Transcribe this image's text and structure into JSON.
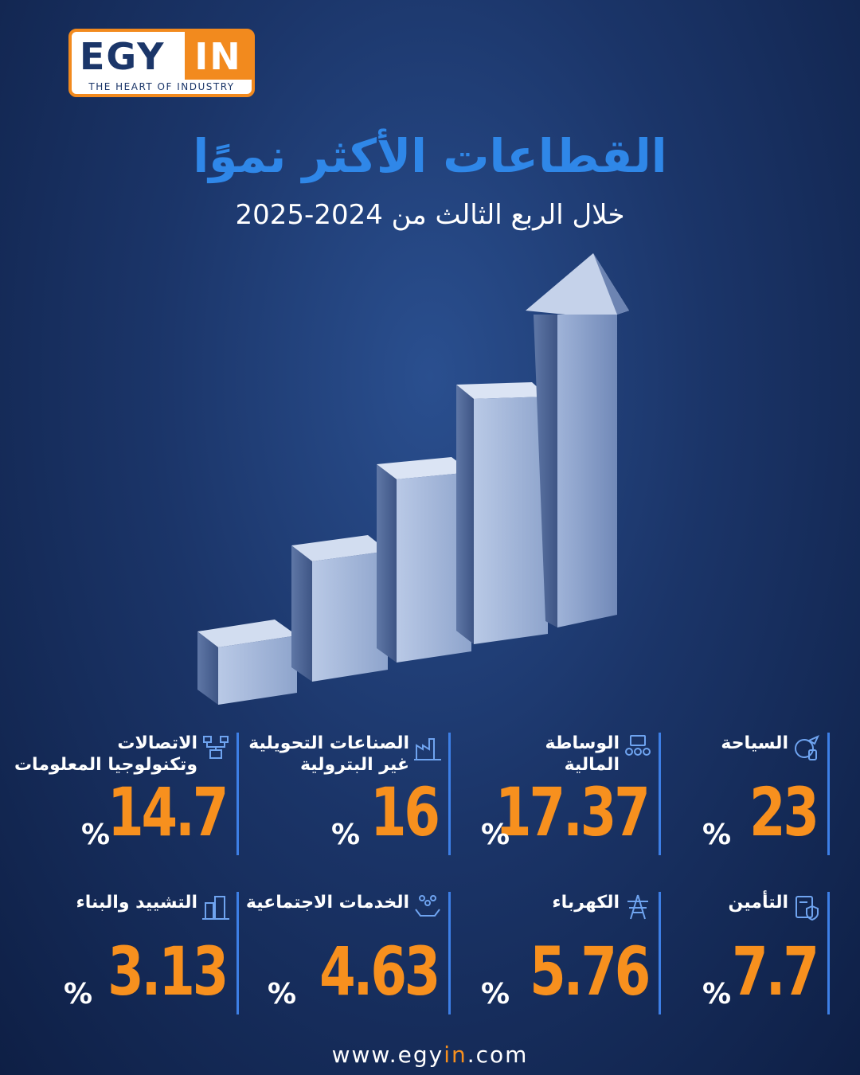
{
  "brand": {
    "egy": "EGY",
    "in": "IN",
    "tagline": "THE HEART OF INDUSTRY"
  },
  "title": "القطاعات الأكثر نموًا",
  "subtitle": "خلال الربع الثالث من 2024-2025",
  "colors": {
    "accent": "#f7901e",
    "title_blue": "#2f87e8",
    "divider": "#3d7fe6"
  },
  "chart_data": {
    "type": "table",
    "unit": "%",
    "rows": [
      {
        "sector": "السياحة",
        "value": 23,
        "display": "23",
        "icon": "tourism-icon"
      },
      {
        "sector": "الوساطة المالية",
        "value": 17.37,
        "display": "17.37",
        "icon": "finance-icon"
      },
      {
        "sector": "الصناعات التحويلية غير البترولية",
        "value": 16,
        "display": "16",
        "icon": "factory-icon"
      },
      {
        "sector": "الاتصالات وتكنولوجيا المعلومات",
        "value": 14.7,
        "display": "14.7",
        "icon": "network-icon"
      },
      {
        "sector": "التأمين",
        "value": 7.7,
        "display": "7.7",
        "icon": "insurance-icon"
      },
      {
        "sector": "الكهرباء",
        "value": 5.76,
        "display": "5.76",
        "icon": "power-tower-icon"
      },
      {
        "sector": "الخدمات الاجتماعية",
        "value": 4.63,
        "display": "4.63",
        "icon": "social-icon"
      },
      {
        "sector": "التشييد والبناء",
        "value": 3.13,
        "display": "3.13",
        "icon": "construction-icon"
      }
    ]
  },
  "stats": {
    "r0": {
      "label_1": "السياحة",
      "label_2": "",
      "value": "23",
      "pct": "%"
    },
    "r1": {
      "label_1": "الوساطة",
      "label_2": "المالية",
      "value": "17.37",
      "pct": "%"
    },
    "r2": {
      "label_1": "الصناعات التحويلية",
      "label_2": "غير البترولية",
      "value": "16",
      "pct": "%"
    },
    "r3": {
      "label_1": "الاتصالات",
      "label_2": "وتكنولوجيا المعلومات",
      "value": "14.7",
      "pct": "%"
    },
    "r4": {
      "label_1": "التأمين",
      "label_2": "",
      "value": "7.7",
      "pct": "%"
    },
    "r5": {
      "label_1": "الكهرباء",
      "label_2": "",
      "value": "5.76",
      "pct": "%"
    },
    "r6": {
      "label_1": "الخدمات الاجتماعية",
      "label_2": "",
      "value": "4.63",
      "pct": "%"
    },
    "r7": {
      "label_1": "التشييد والبناء",
      "label_2": "",
      "value": "3.13",
      "pct": "%"
    }
  },
  "footer": {
    "pre": "www.egy",
    "hl": "in",
    "post": ".com"
  }
}
